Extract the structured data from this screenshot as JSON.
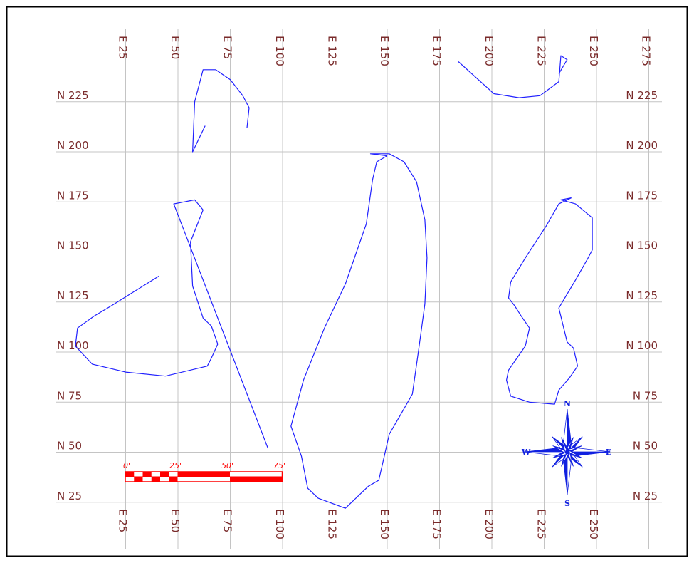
{
  "grid": {
    "easting_values": [
      25,
      50,
      75,
      100,
      125,
      150,
      175,
      200,
      225,
      250,
      275
    ],
    "northing_values": [
      225,
      200,
      175,
      150,
      125,
      100,
      75,
      50,
      25
    ],
    "easting_prefix": "E",
    "northing_prefix": "N",
    "top_easting_labels": [
      "E 25",
      "E 50",
      "E 75",
      "E 100",
      "E 125",
      "E 150",
      "E 175",
      "E 200",
      "E 225",
      "E 250",
      "E 275"
    ],
    "bottom_easting_labels": [
      "E 25",
      "E 50",
      "E 75",
      "E 100",
      "E 125",
      "E 150",
      "E 175",
      "E 200",
      "E 225",
      "E 250"
    ],
    "left_northing_labels": [
      "N 225",
      "N 200",
      "N 175",
      "N 150",
      "N 125",
      "N 100",
      "N 75",
      "N 50",
      "N 25"
    ],
    "right_northing_labels": [
      "N 225",
      "N 200",
      "N 175",
      "N 150",
      "N 125",
      "N 100",
      "N 75",
      "N 50",
      "N 25"
    ]
  },
  "contours": [
    {
      "id": "small-north",
      "points": [
        [
          63,
          213
        ],
        [
          57,
          200
        ],
        [
          58,
          225
        ],
        [
          62,
          241
        ],
        [
          68,
          241
        ],
        [
          75,
          236
        ],
        [
          81,
          228
        ],
        [
          84,
          222
        ],
        [
          83,
          212
        ]
      ]
    },
    {
      "id": "west",
      "points": [
        [
          93,
          52
        ],
        [
          48,
          174
        ],
        [
          58,
          176
        ],
        [
          62,
          171
        ],
        [
          56,
          155
        ],
        [
          57,
          133
        ],
        [
          62,
          117
        ],
        [
          66,
          113
        ],
        [
          69,
          104
        ],
        [
          66,
          97
        ],
        [
          64,
          93
        ],
        [
          44,
          88
        ],
        [
          25,
          90
        ],
        [
          9,
          94
        ],
        [
          1,
          103
        ],
        [
          2,
          112
        ],
        [
          10,
          118
        ],
        [
          18,
          123
        ],
        [
          41,
          138
        ]
      ]
    },
    {
      "id": "central",
      "points": [
        [
          150,
          198
        ],
        [
          142,
          199
        ],
        [
          151,
          199
        ],
        [
          158,
          195
        ],
        [
          164,
          185
        ],
        [
          168,
          166
        ],
        [
          169,
          147
        ],
        [
          168,
          124
        ],
        [
          165,
          101
        ],
        [
          162,
          79
        ],
        [
          156,
          68
        ],
        [
          151,
          59
        ],
        [
          146,
          36
        ],
        [
          141,
          33
        ],
        [
          130,
          22
        ],
        [
          117,
          27
        ],
        [
          112,
          32
        ],
        [
          109,
          48
        ],
        [
          104,
          63
        ],
        [
          110,
          86
        ],
        [
          120,
          112
        ],
        [
          130,
          134
        ],
        [
          140,
          164
        ],
        [
          143,
          186
        ],
        [
          145,
          195
        ],
        [
          150,
          198
        ]
      ]
    },
    {
      "id": "east",
      "points": [
        [
          238,
          177
        ],
        [
          233,
          176
        ],
        [
          240,
          174
        ],
        [
          248,
          167
        ],
        [
          248,
          151
        ],
        [
          246,
          147
        ],
        [
          240,
          136
        ],
        [
          232,
          122
        ],
        [
          236,
          105
        ],
        [
          239,
          102
        ],
        [
          241,
          93
        ],
        [
          237,
          87
        ],
        [
          232,
          81
        ],
        [
          230,
          74
        ],
        [
          218,
          75
        ],
        [
          209,
          78
        ],
        [
          207,
          86
        ],
        [
          208,
          91
        ],
        [
          216,
          103
        ],
        [
          218,
          112
        ],
        [
          214,
          118
        ],
        [
          211,
          123
        ],
        [
          208,
          127
        ],
        [
          209,
          135
        ],
        [
          216,
          147
        ],
        [
          226,
          163
        ],
        [
          232,
          174
        ],
        [
          238,
          177
        ]
      ]
    },
    {
      "id": "northeast",
      "points": [
        [
          184,
          245
        ],
        [
          201,
          229
        ],
        [
          213,
          227
        ],
        [
          223,
          228
        ],
        [
          232,
          235
        ],
        [
          233,
          248
        ],
        [
          236,
          246
        ],
        [
          232,
          239
        ]
      ]
    }
  ],
  "scale_bar": {
    "labels": [
      "0'",
      "25'",
      "50'",
      "75'"
    ],
    "segment_count": 6
  },
  "compass": {
    "labels": {
      "n": "N",
      "s": "S",
      "e": "E",
      "w": "W"
    }
  },
  "colors": {
    "contour": "#2020ff",
    "grid_label": "#7a2b2b",
    "scale_bar": "#ff0000",
    "compass_fill": "#1020e0",
    "grid_line": "#c4c4c4",
    "border": "#000000"
  }
}
